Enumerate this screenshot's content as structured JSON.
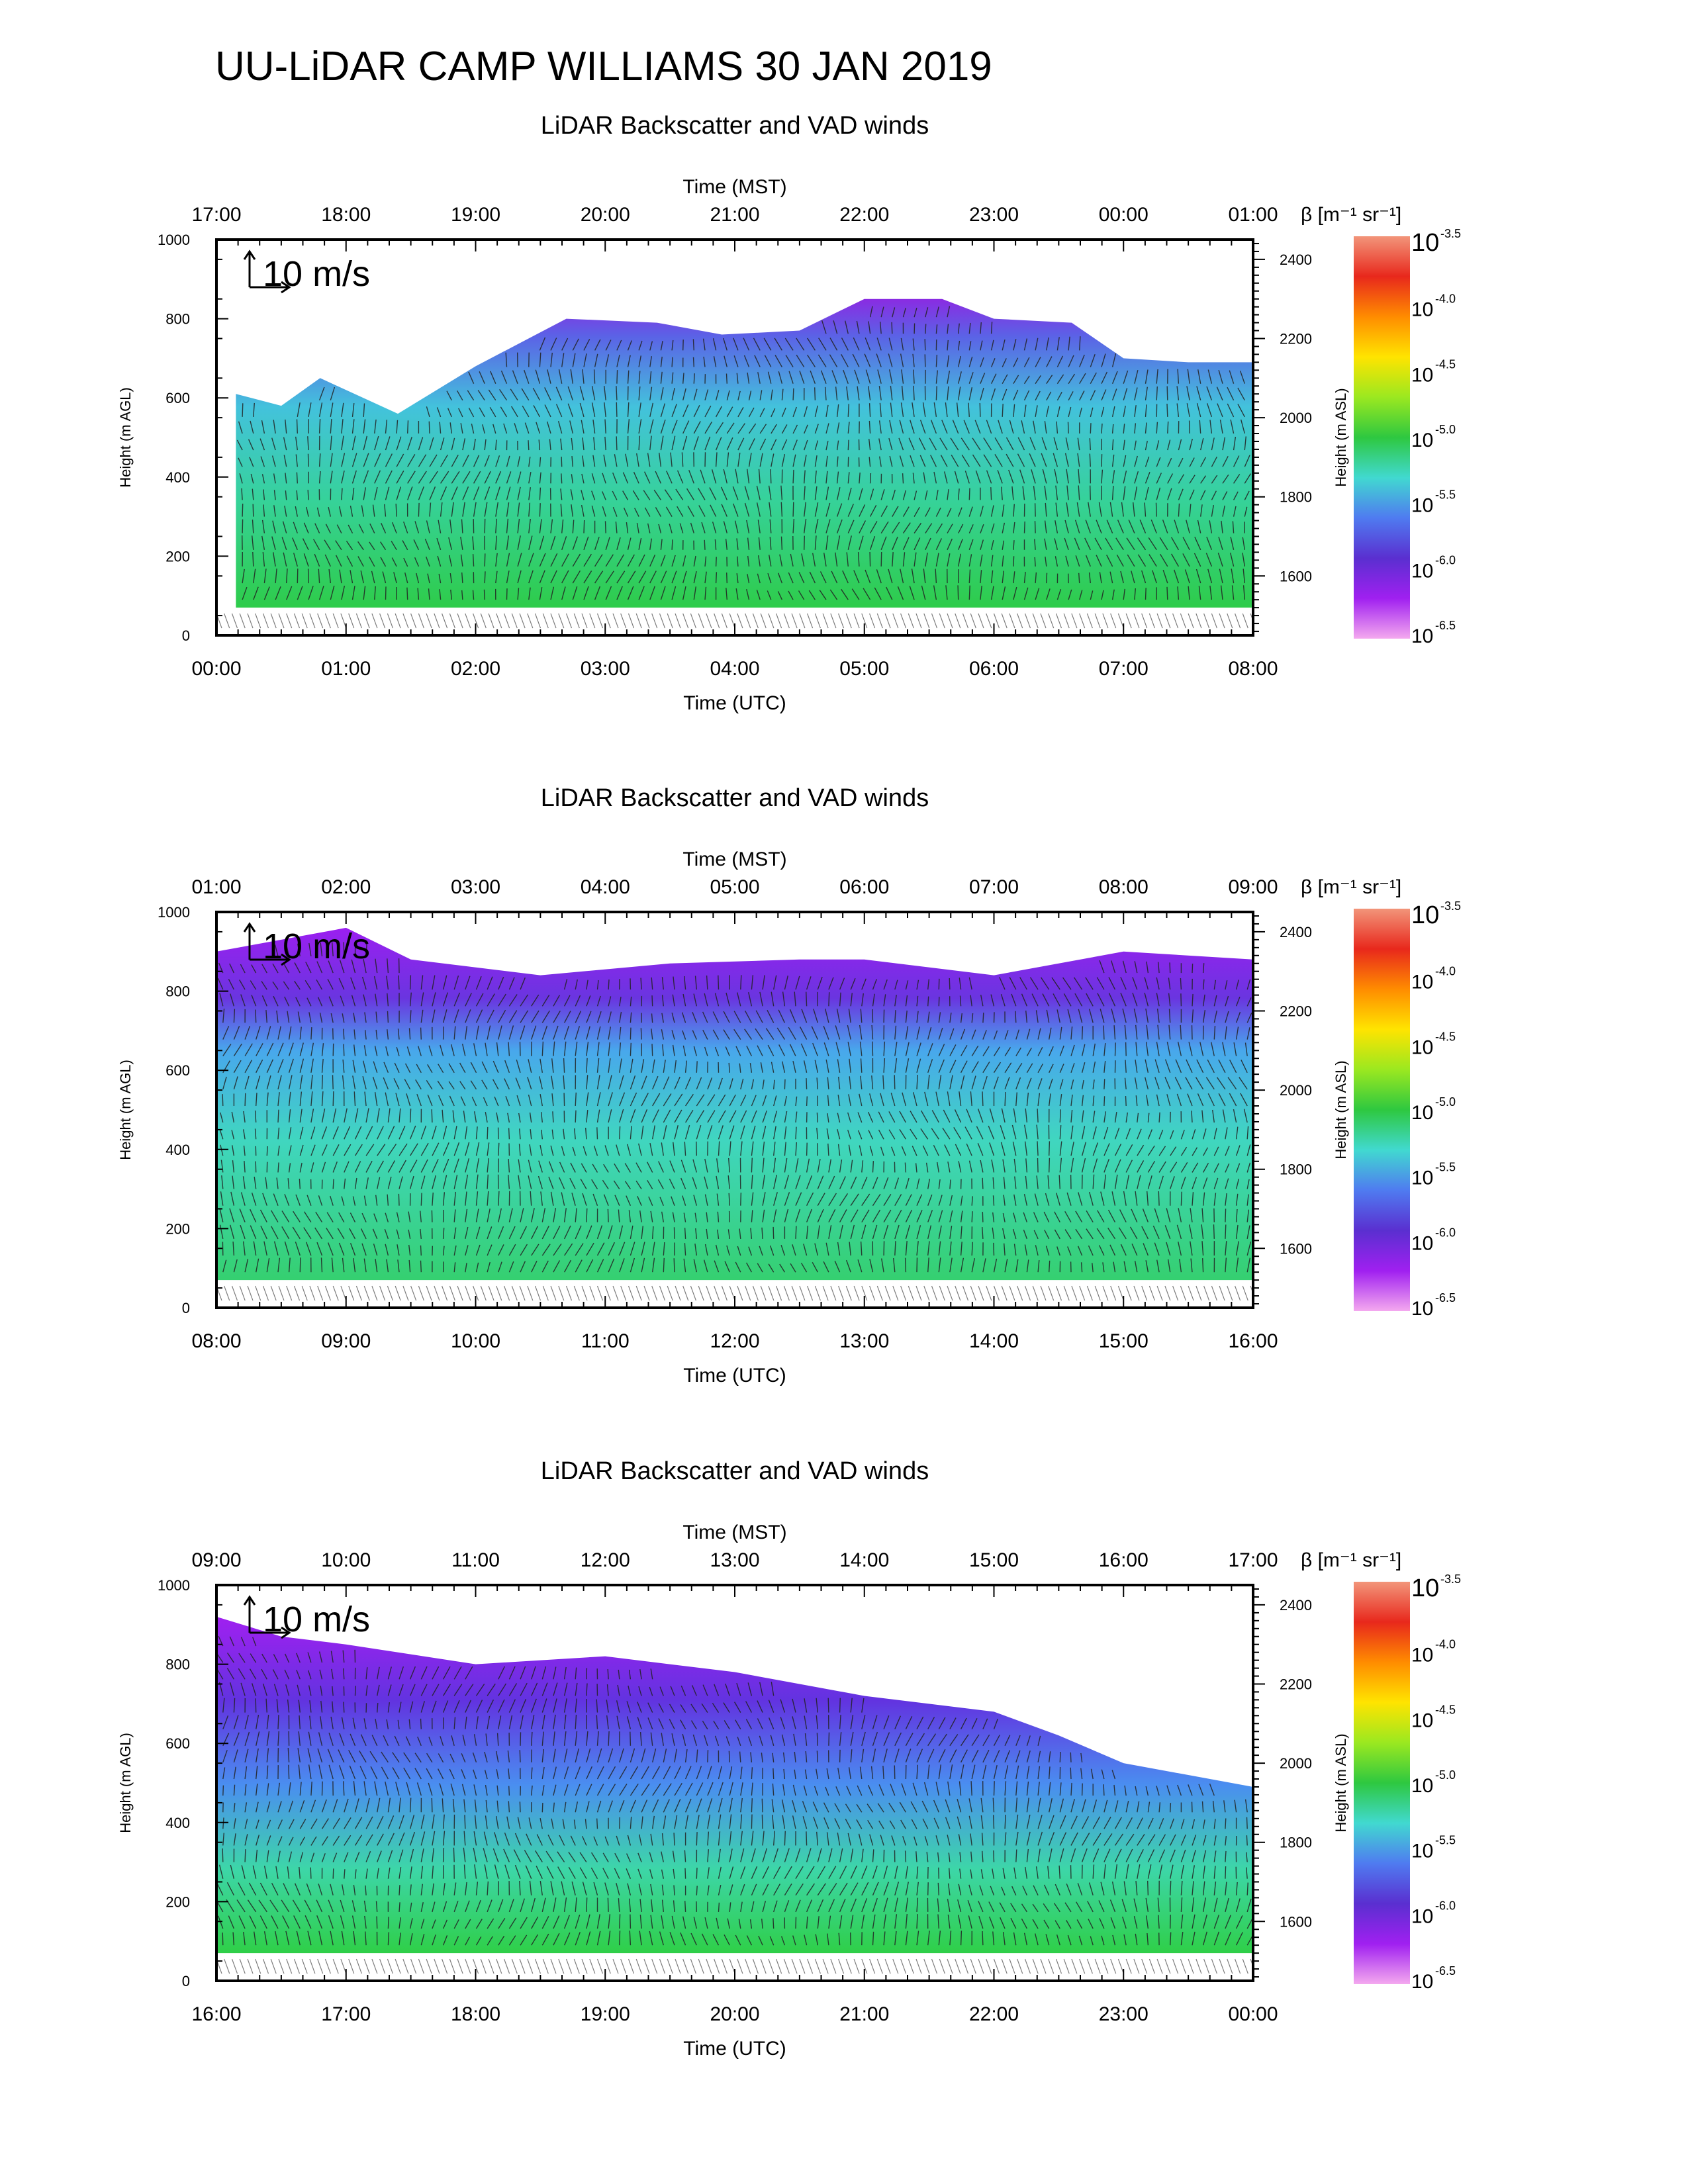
{
  "title": "UU-LiDAR CAMP WILLIAMS 30 JAN 2019",
  "colors": {
    "colorbar_stops": [
      "#f4a9ef",
      "#a020f0",
      "#5a2fd0",
      "#4f7bf0",
      "#41d9d0",
      "#2ec840",
      "#9be820",
      "#ffe400",
      "#ff8c00",
      "#e8281c",
      "#f2957a"
    ],
    "arrow": "#222222",
    "axis": "#000000"
  },
  "chart_data": [
    {
      "type": "heatmap",
      "title": "LiDAR Backscatter and VAD winds",
      "xlabel": "Time (UTC)",
      "x2label": "Time (MST)",
      "ylabel": "Height (m AGL)",
      "y2label": "Height (m ASL)",
      "x_ticks": [
        "00:00",
        "01:00",
        "02:00",
        "03:00",
        "04:00",
        "05:00",
        "06:00",
        "07:00",
        "08:00"
      ],
      "x2_ticks": [
        "17:00",
        "18:00",
        "19:00",
        "20:00",
        "21:00",
        "22:00",
        "23:00",
        "00:00",
        "01:00"
      ],
      "y_ticks": [
        0,
        200,
        400,
        600,
        800,
        1000
      ],
      "ylim": [
        0,
        1000
      ],
      "y2_ticks": [
        1600,
        1800,
        2000,
        2200,
        2400
      ],
      "wind_scale_label": "10 m/s",
      "colorbar_label": "β [m⁻¹ sr⁻¹]",
      "colorbar_base": "10",
      "colorbar_exponents": [
        "-3.5",
        "-4.0",
        "-4.5",
        "-5.0",
        "-5.5",
        "-6.0",
        "-6.5"
      ],
      "layer_top_m_agl": [
        [
          0.15,
          610
        ],
        [
          0.5,
          580
        ],
        [
          0.8,
          650
        ],
        [
          1.4,
          560
        ],
        [
          2.0,
          680
        ],
        [
          2.7,
          800
        ],
        [
          3.4,
          790
        ],
        [
          3.9,
          760
        ],
        [
          4.5,
          770
        ],
        [
          5.0,
          850
        ],
        [
          5.6,
          850
        ],
        [
          6.0,
          800
        ],
        [
          6.6,
          790
        ],
        [
          7.0,
          700
        ],
        [
          7.5,
          690
        ],
        [
          8.0,
          690
        ]
      ],
      "fill_bottom_m_agl": 70
    },
    {
      "type": "heatmap",
      "title": "LiDAR Backscatter and VAD winds",
      "xlabel": "Time (UTC)",
      "x2label": "Time (MST)",
      "ylabel": "Height (m AGL)",
      "y2label": "Height (m ASL)",
      "x_ticks": [
        "08:00",
        "09:00",
        "10:00",
        "11:00",
        "12:00",
        "13:00",
        "14:00",
        "15:00",
        "16:00"
      ],
      "x2_ticks": [
        "01:00",
        "02:00",
        "03:00",
        "04:00",
        "05:00",
        "06:00",
        "07:00",
        "08:00",
        "09:00"
      ],
      "y_ticks": [
        0,
        200,
        400,
        600,
        800,
        1000
      ],
      "ylim": [
        0,
        1000
      ],
      "y2_ticks": [
        1600,
        1800,
        2000,
        2200,
        2400
      ],
      "wind_scale_label": "10 m/s",
      "colorbar_label": "β [m⁻¹ sr⁻¹]",
      "colorbar_base": "10",
      "colorbar_exponents": [
        "-3.5",
        "-4.0",
        "-4.5",
        "-5.0",
        "-5.5",
        "-6.0",
        "-6.5"
      ],
      "layer_top_m_agl": [
        [
          0.0,
          900
        ],
        [
          1.0,
          960
        ],
        [
          1.5,
          880
        ],
        [
          2.5,
          840
        ],
        [
          3.5,
          870
        ],
        [
          4.5,
          880
        ],
        [
          5.0,
          880
        ],
        [
          6.0,
          840
        ],
        [
          7.0,
          900
        ],
        [
          8.0,
          880
        ]
      ],
      "fill_bottom_m_agl": 70
    },
    {
      "type": "heatmap",
      "title": "LiDAR Backscatter and VAD winds",
      "xlabel": "Time (UTC)",
      "x2label": "Time (MST)",
      "ylabel": "Height (m AGL)",
      "y2label": "Height (m ASL)",
      "x_ticks": [
        "16:00",
        "17:00",
        "18:00",
        "19:00",
        "20:00",
        "21:00",
        "22:00",
        "23:00",
        "00:00"
      ],
      "x2_ticks": [
        "09:00",
        "10:00",
        "11:00",
        "12:00",
        "13:00",
        "14:00",
        "15:00",
        "16:00",
        "17:00"
      ],
      "y_ticks": [
        0,
        200,
        400,
        600,
        800,
        1000
      ],
      "ylim": [
        0,
        1000
      ],
      "y2_ticks": [
        1600,
        1800,
        2000,
        2200,
        2400
      ],
      "wind_scale_label": "10 m/s",
      "colorbar_label": "β [m⁻¹ sr⁻¹]",
      "colorbar_base": "10",
      "colorbar_exponents": [
        "-3.5",
        "-4.0",
        "-4.5",
        "-5.0",
        "-5.5",
        "-6.0",
        "-6.5"
      ],
      "layer_top_m_agl": [
        [
          0.0,
          920
        ],
        [
          0.5,
          870
        ],
        [
          1.0,
          850
        ],
        [
          2.0,
          800
        ],
        [
          3.0,
          820
        ],
        [
          4.0,
          780
        ],
        [
          5.0,
          720
        ],
        [
          6.0,
          680
        ],
        [
          6.5,
          620
        ],
        [
          7.0,
          550
        ],
        [
          7.5,
          520
        ],
        [
          8.0,
          490
        ]
      ],
      "fill_bottom_m_agl": 70
    }
  ]
}
